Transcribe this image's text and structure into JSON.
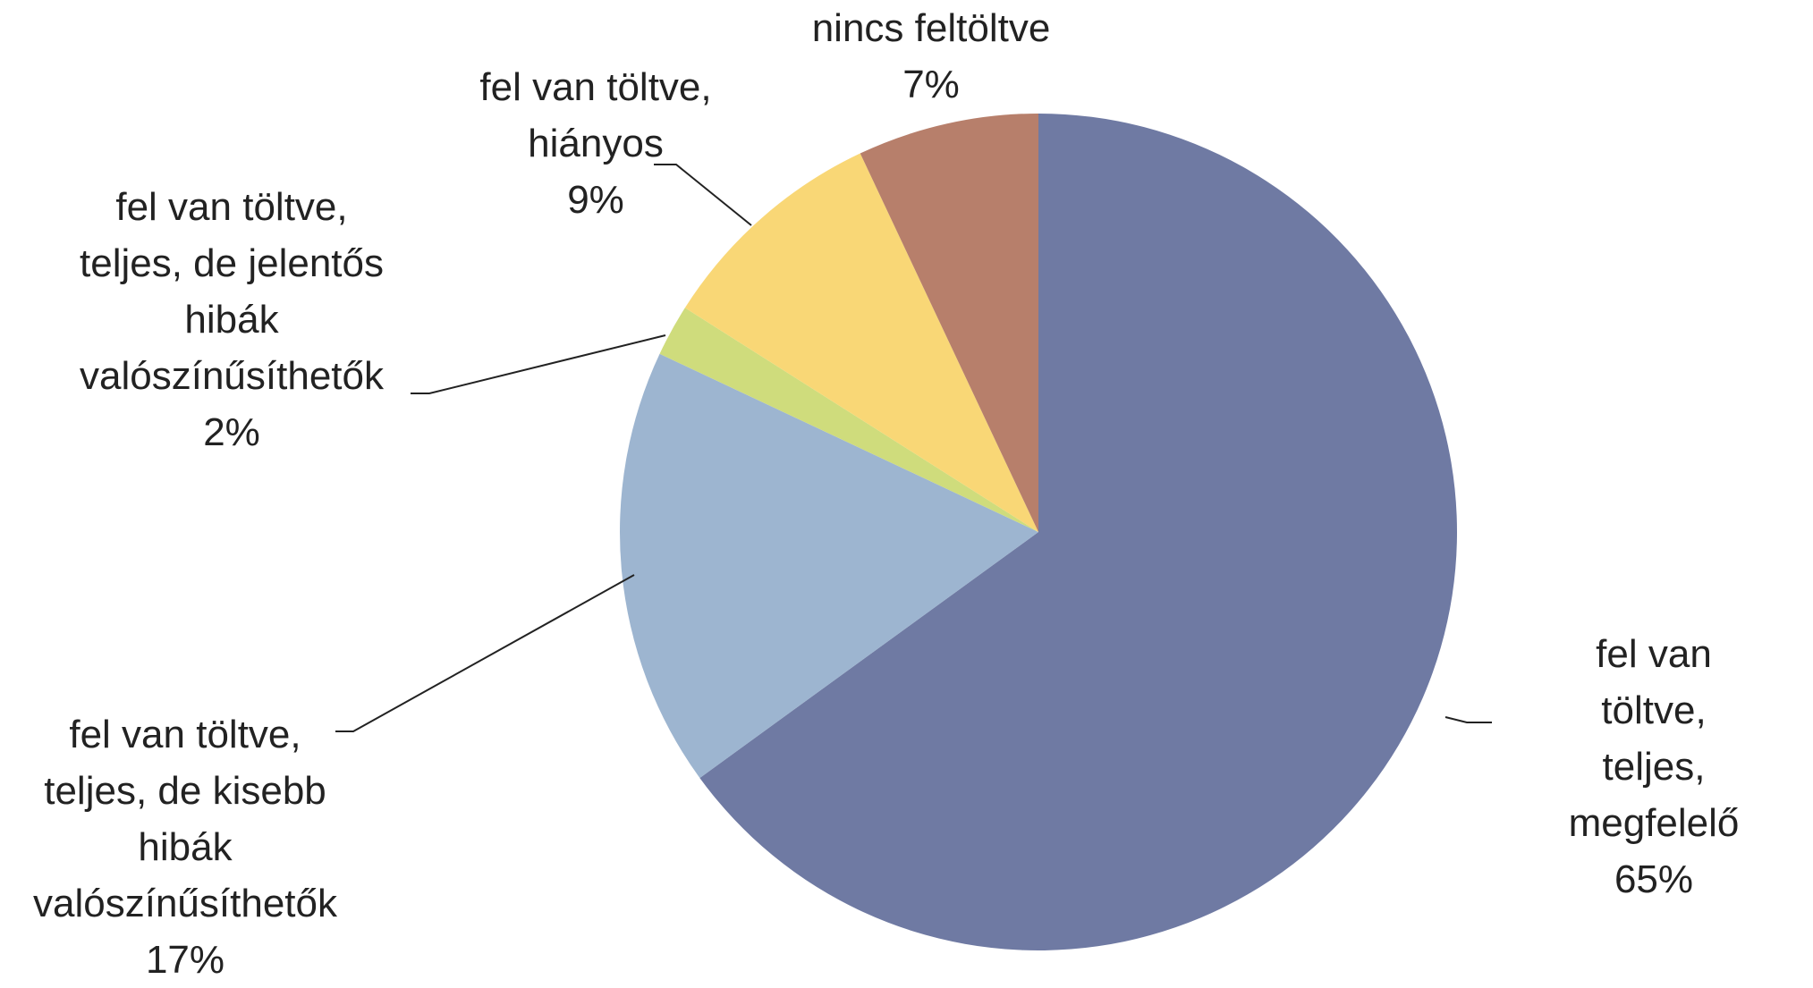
{
  "chart_data": {
    "type": "pie",
    "categories": [
      "fel van töltve,\nteljes, megfelelő",
      "fel van töltve,\nteljes, de kisebb\nhibák\nvalószínűsíthetők",
      "fel van töltve,\nteljes, de jelentős\nhibák\nvalószínűsíthetők",
      "fel van töltve,\nhiányos",
      "nincs feltöltve"
    ],
    "values": [
      65,
      17,
      2,
      9,
      7
    ],
    "value_labels": [
      "65%",
      "17%",
      "2%",
      "9%",
      "7%"
    ],
    "colors": [
      "#6f7aa3",
      "#9db5d0",
      "#cfdc7c",
      "#f9d776",
      "#b77f6b"
    ]
  }
}
